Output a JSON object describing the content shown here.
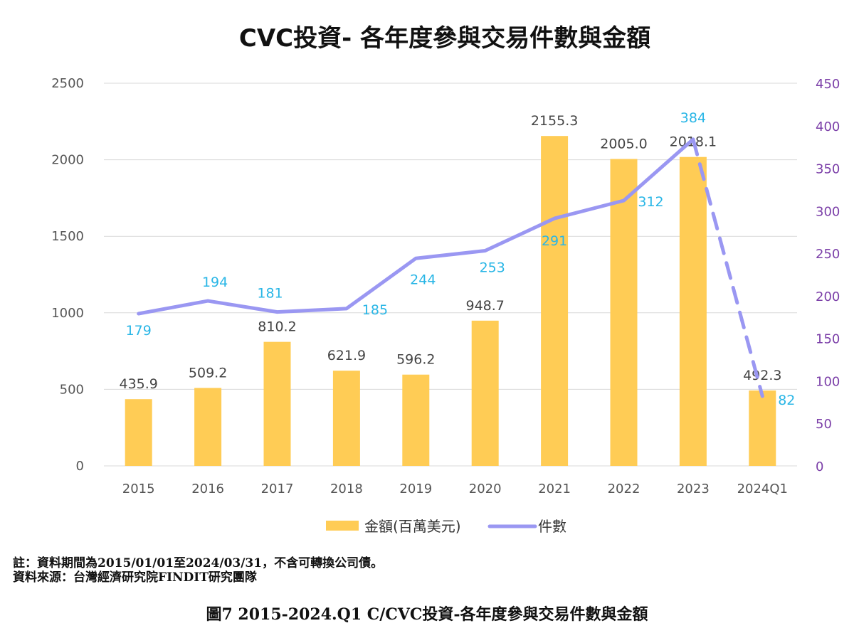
{
  "chart_data": {
    "type": "bar",
    "title": "CVC投資- 各年度參與交易件數與金額",
    "categories": [
      "2015",
      "2016",
      "2017",
      "2018",
      "2019",
      "2020",
      "2021",
      "2022",
      "2023",
      "2024Q1"
    ],
    "categories_labels": [
      "2015",
      "2016",
      "2017",
      "2018",
      "2019",
      "2020",
      "2021",
      "2022",
      "2023",
      "2024Q1"
    ],
    "series": [
      {
        "name": "金額(百萬美元)",
        "type": "bar",
        "axis": "left",
        "values": [
          435.9,
          509.2,
          810.2,
          621.9,
          596.2,
          948.7,
          2155.3,
          2005.0,
          2018.1,
          492.3
        ],
        "labels": [
          "435.9",
          "509.2",
          "810.2",
          "621.9",
          "596.2",
          "948.7",
          "2155.3",
          "2005.0",
          "2018.1",
          "492.3"
        ],
        "color": "#ffcc55"
      },
      {
        "name": "件數",
        "type": "line",
        "axis": "right",
        "values": [
          179,
          194,
          181,
          185,
          244,
          253,
          291,
          312,
          384,
          82
        ],
        "labels": [
          "179",
          "194",
          "181",
          "185",
          "244",
          "253",
          "291",
          "312",
          "384",
          "82"
        ],
        "color": "#9a97f2",
        "label_color": "#29b6e6",
        "last_segment_style": "dashed"
      }
    ],
    "y_left": {
      "range": [
        0,
        2500
      ],
      "ticks": [
        "0",
        "500",
        "1000",
        "1500",
        "2000",
        "2500"
      ]
    },
    "y_right": {
      "range": [
        0,
        450
      ],
      "ticks": [
        "0",
        "50",
        "100",
        "150",
        "200",
        "250",
        "300",
        "350",
        "400",
        "450"
      ],
      "color": "#7b3fa8"
    },
    "grid": true,
    "legend_position": "bottom"
  },
  "notes": {
    "note_1": "註：資料期間為2015/01/01至2024/03/31，不含可轉換公司債。",
    "note_2": "資料來源：台灣經濟研究院FINDIT研究團隊"
  },
  "caption": "圖7 2015-2024.Q1 C/CVC投資-各年度參與交易件數與金額"
}
